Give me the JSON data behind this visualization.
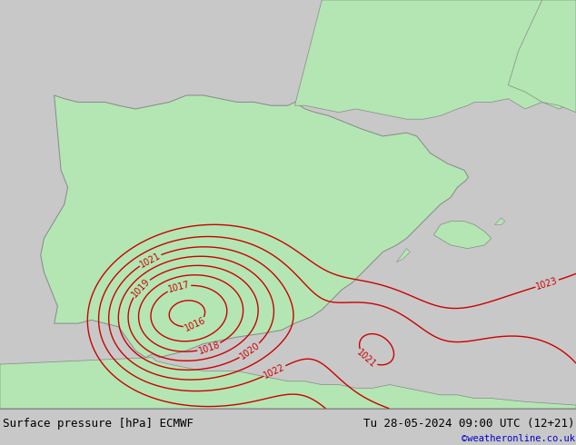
{
  "title_left": "Surface pressure [hPa] ECMWF",
  "title_right": "Tu 28-05-2024 09:00 UTC (12+21)",
  "copyright": "©weatheronline.co.uk",
  "bg_color_land": "#b3e6b3",
  "bg_color_sea": "#d8d8d8",
  "bg_color_outside": "#c8c8c8",
  "contour_color": "#cc0000",
  "contour_label_color": "#cc0000",
  "border_color": "#888888",
  "bottom_bar_color": "#b0b0b0",
  "bottom_text_color": "#000000",
  "copyright_color": "#0000cc",
  "font_size_bottom": 9,
  "font_size_contour": 7,
  "pressure_levels": [
    1016,
    1017,
    1018,
    1019,
    1020,
    1021,
    1022,
    1023
  ],
  "figsize": [
    6.34,
    4.9
  ],
  "dpi": 100,
  "lon_min": -10.5,
  "lon_max": 6.5,
  "lat_min": 34.5,
  "lat_max": 46.5
}
